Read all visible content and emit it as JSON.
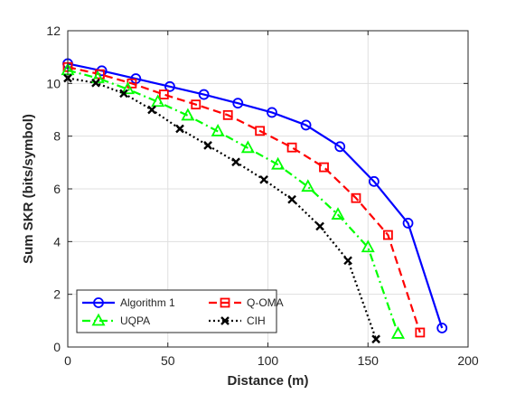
{
  "chart_data": {
    "type": "line",
    "title": "",
    "xlabel": "Distance (m)",
    "ylabel": "Sum SKR (bits/symbol)",
    "xlim": [
      0,
      200
    ],
    "ylim": [
      0,
      12
    ],
    "xticks": [
      0,
      50,
      100,
      150,
      200
    ],
    "yticks": [
      0,
      2,
      4,
      6,
      8,
      10,
      12
    ],
    "grid": true,
    "legend_position": "bottom-left",
    "legend_columns": 2,
    "series": [
      {
        "name": "Algorithm 1",
        "color": "#0000ff",
        "line_style": "solid",
        "marker": "circle",
        "x": [
          0,
          17,
          34,
          51,
          68,
          85,
          102,
          119,
          136,
          153,
          170,
          187
        ],
        "y": [
          10.75,
          10.48,
          10.18,
          9.88,
          9.58,
          9.25,
          8.9,
          8.42,
          7.6,
          6.28,
          4.7,
          0.72
        ]
      },
      {
        "name": "Q-OMA",
        "color": "#ff0000",
        "line_style": "dashed",
        "marker": "square",
        "x": [
          0,
          16,
          32,
          48,
          64,
          80,
          96,
          112,
          128,
          144,
          160,
          176
        ],
        "y": [
          10.62,
          10.35,
          10.0,
          9.58,
          9.2,
          8.8,
          8.2,
          7.57,
          6.82,
          5.65,
          4.25,
          0.55
        ]
      },
      {
        "name": "UQPA",
        "color": "#00ff00",
        "line_style": "dashdot",
        "marker": "triangle",
        "x": [
          0,
          15,
          30,
          45,
          60,
          75,
          90,
          105,
          120,
          135,
          150,
          165
        ],
        "y": [
          10.5,
          10.2,
          9.78,
          9.3,
          8.78,
          8.18,
          7.55,
          6.92,
          6.08,
          5.02,
          3.78,
          0.5
        ]
      },
      {
        "name": "CIH",
        "color": "#000000",
        "line_style": "dotted",
        "marker": "x",
        "x": [
          0,
          14,
          28,
          42,
          56,
          70,
          84,
          98,
          112,
          126,
          140,
          154
        ],
        "y": [
          10.2,
          10.02,
          9.62,
          9.0,
          8.28,
          7.65,
          7.02,
          6.35,
          5.6,
          4.58,
          3.28,
          0.3
        ]
      }
    ]
  }
}
